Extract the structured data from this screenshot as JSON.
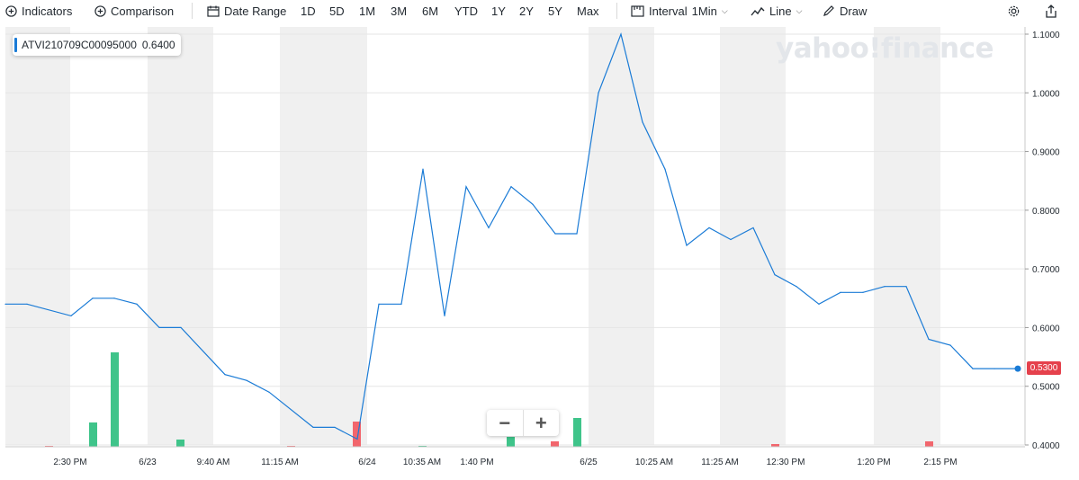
{
  "toolbar": {
    "indicators": "Indicators",
    "comparison": "Comparison",
    "date_range": "Date Range",
    "ranges": [
      "1D",
      "5D",
      "1M",
      "3M",
      "6M",
      "YTD",
      "1Y",
      "2Y",
      "5Y",
      "Max"
    ],
    "interval_label": "Interval",
    "interval_value": "1Min",
    "chart_type": "Line",
    "draw": "Draw"
  },
  "legend": {
    "symbol": "ATVI210709C00095000",
    "value": "0.6400"
  },
  "watermark": "yahoo!finance",
  "zoom": {
    "minus": "−",
    "plus": "+"
  },
  "last_price": "0.5300",
  "colors": {
    "line": "#1a7bd6",
    "up": "#3fc48a",
    "down": "#f2666d",
    "band": "#f0f0f0",
    "price_tag": "#e5414c"
  },
  "chart_data": {
    "type": "line",
    "y_axis_ticks": [
      "1.1000",
      "1.0000",
      "0.9000",
      "0.8000",
      "0.7000",
      "0.6000",
      "0.5000",
      "0.4000"
    ],
    "ylim": [
      0.4,
      1.1
    ],
    "x_axis_ticks": [
      "2:30 PM",
      "6/23",
      "9:40 AM",
      "11:15 AM",
      "6/24",
      "10:35 AM",
      "1:40 PM",
      "6/25",
      "10:25 AM",
      "11:25 AM",
      "12:30 PM",
      "1:20 PM",
      "2:15 PM"
    ],
    "series": [
      {
        "values": [
          0.64,
          0.64,
          0.62,
          0.65,
          0.65,
          0.64,
          0.6,
          0.6,
          0.52,
          0.51,
          0.49,
          0.43,
          0.43,
          0.41,
          0.64,
          0.64,
          0.87,
          0.62,
          0.84,
          0.77,
          0.84,
          0.81,
          0.76,
          0.76,
          1.0,
          1.1,
          0.95,
          0.87,
          0.74,
          0.77,
          0.75,
          0.77,
          0.69,
          0.67,
          0.64,
          0.66,
          0.66,
          0.67,
          0.67,
          0.58,
          0.57,
          0.53,
          0.53,
          0.53
        ]
      }
    ]
  }
}
